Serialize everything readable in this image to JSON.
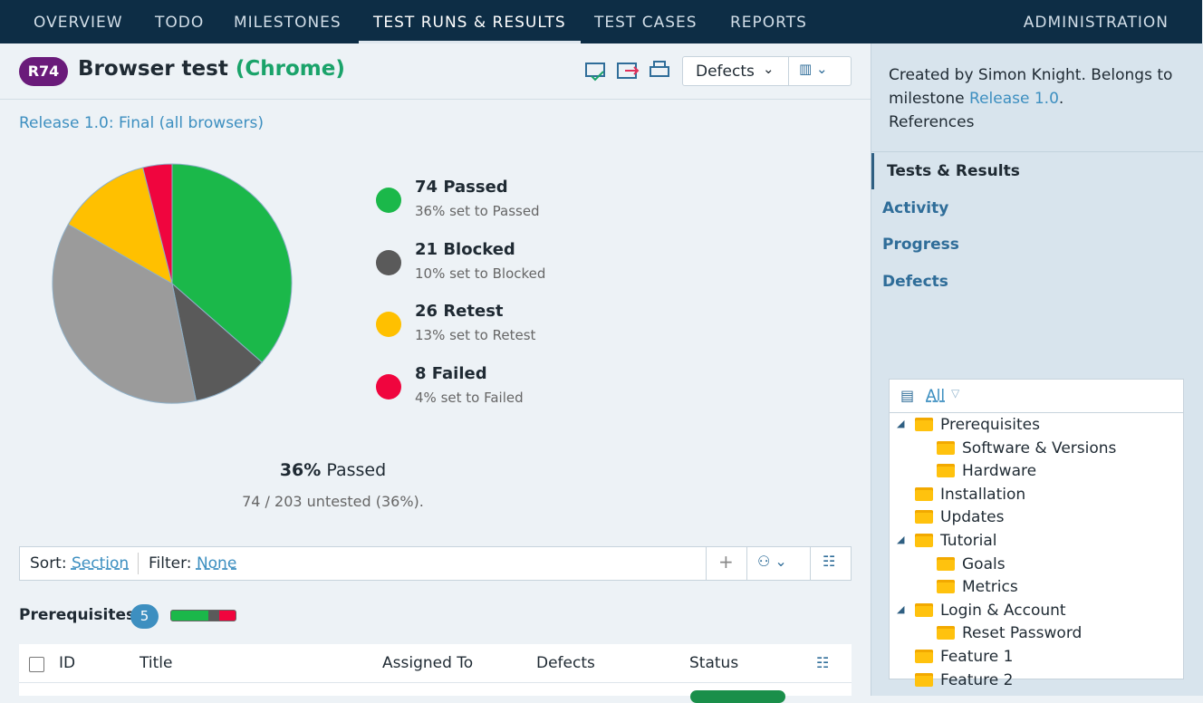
{
  "nav": {
    "items": [
      "OVERVIEW",
      "TODO",
      "MILESTONES",
      "TEST RUNS & RESULTS",
      "TEST CASES",
      "REPORTS"
    ],
    "active": 3,
    "admin": "ADMINISTRATION"
  },
  "header": {
    "badge": "R74",
    "title": "Browser test",
    "config": "(Chrome)",
    "dropdown": "Defects"
  },
  "plan_link": "Release 1.0: Final (all browsers)",
  "pie": {
    "values": [
      74,
      21,
      74,
      26,
      8
    ],
    "colors": [
      "#1bb84a",
      "#5a5a5a",
      "#9b9b9b",
      "#ffc000",
      "#f0053e"
    ]
  },
  "legend": [
    {
      "title": "74 Passed",
      "subtitle": "36% set to Passed",
      "color": "#1bb84a"
    },
    {
      "title": "21 Blocked",
      "subtitle": "10% set to Blocked",
      "color": "#5a5a5a"
    },
    {
      "title": "26 Retest",
      "subtitle": "13% set to Retest",
      "color": "#ffc000"
    },
    {
      "title": "8 Failed",
      "subtitle": "4% set to Failed",
      "color": "#f0053e"
    }
  ],
  "summary": {
    "percent": "36%",
    "label": "Passed",
    "detail": "74 / 203 untested (36%)."
  },
  "toolbar": {
    "sort_label": "Sort:",
    "sort_value": "Section",
    "filter_label": "Filter:",
    "filter_value": "None"
  },
  "section": {
    "title": "Prerequisites",
    "count": "5"
  },
  "table": {
    "columns": [
      "ID",
      "Title",
      "Assigned To",
      "Defects",
      "Status"
    ]
  },
  "sidebar": {
    "description": [
      "Created by Simon Knight. Belongs to milestone ",
      "Release 1.0",
      "."
    ],
    "references": "References",
    "tabs": [
      "Tests & Results",
      "Activity",
      "Progress",
      "Defects"
    ],
    "tree": {
      "filter": "All",
      "nodes": [
        {
          "label": "Prerequisites",
          "level": 0,
          "expanded": true
        },
        {
          "label": "Software & Versions",
          "level": 1
        },
        {
          "label": "Hardware",
          "level": 1
        },
        {
          "label": "Installation",
          "level": 0
        },
        {
          "label": "Updates",
          "level": 0
        },
        {
          "label": "Tutorial",
          "level": 0,
          "expanded": true
        },
        {
          "label": "Goals",
          "level": 1
        },
        {
          "label": "Metrics",
          "level": 1
        },
        {
          "label": "Login & Account",
          "level": 0,
          "expanded": true
        },
        {
          "label": "Reset Password",
          "level": 1
        },
        {
          "label": "Feature 1",
          "level": 0
        },
        {
          "label": "Feature 2",
          "level": 0
        }
      ]
    }
  }
}
